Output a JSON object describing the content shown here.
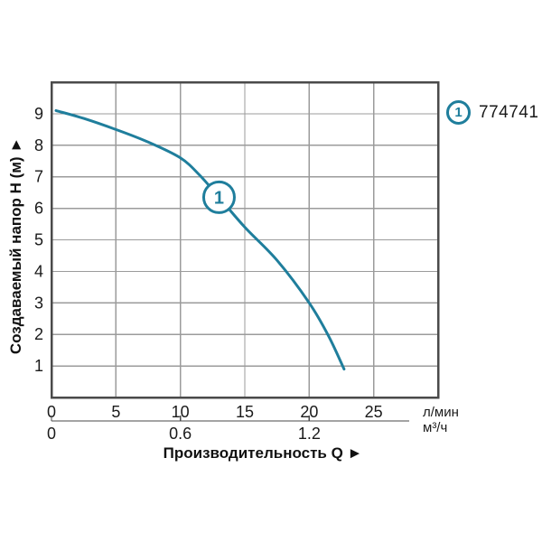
{
  "legend": {
    "marker_label": "1",
    "model_code": "774741"
  },
  "y_axis": {
    "title": "Создаваемый напор H (м) ►"
  },
  "x_axis": {
    "title": "Производительность Q ►"
  },
  "colors": {
    "accent": "#1f7e9c",
    "text": "#1a1a1a",
    "grid": "#9b9b9b",
    "border": "#4a4a4a"
  },
  "chart_data": {
    "type": "line",
    "title": "",
    "xlabel": "Производительность Q",
    "ylabel": "Создаваемый напор H (м)",
    "xlim": [
      0,
      30
    ],
    "ylim": [
      0,
      10
    ],
    "grid": true,
    "x_ticks_primary": {
      "unit": "л/мин",
      "values": [
        0,
        5,
        10,
        15,
        20,
        25
      ]
    },
    "x_ticks_secondary": {
      "unit": "м³/ч",
      "ticks": [
        {
          "label": "0",
          "lmin": 0
        },
        {
          "label": "0.6",
          "lmin": 10
        },
        {
          "label": "1.2",
          "lmin": 20
        }
      ]
    },
    "y_ticks": [
      1,
      2,
      3,
      4,
      5,
      6,
      7,
      8,
      9
    ],
    "series": [
      {
        "name": "774741",
        "marker_label": "1",
        "color": "#1f7e9c",
        "marker_position": [
          13,
          6.35
        ],
        "points": [
          [
            0.35,
            9.1
          ],
          [
            2.5,
            8.85
          ],
          [
            5,
            8.5
          ],
          [
            7.5,
            8.1
          ],
          [
            10,
            7.6
          ],
          [
            11.5,
            7.05
          ],
          [
            13,
            6.35
          ],
          [
            15,
            5.4
          ],
          [
            17.5,
            4.35
          ],
          [
            20,
            3.0
          ],
          [
            21.5,
            1.95
          ],
          [
            22.7,
            0.9
          ]
        ]
      }
    ]
  }
}
